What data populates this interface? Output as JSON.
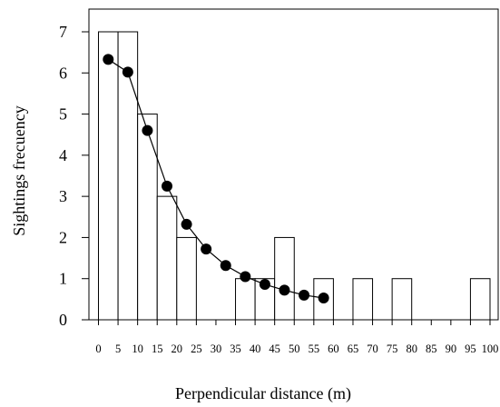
{
  "chart_data": {
    "type": "bar",
    "xlabel": "Perpendicular distance (m)",
    "ylabel": "Sightings frecuency",
    "xlim": [
      0,
      100
    ],
    "ylim": [
      0,
      7
    ],
    "bin_width": 5,
    "x_ticks": [
      0,
      5,
      10,
      15,
      20,
      25,
      30,
      35,
      40,
      45,
      50,
      55,
      60,
      65,
      70,
      75,
      80,
      85,
      90,
      95,
      100
    ],
    "y_ticks": [
      0,
      1,
      2,
      3,
      4,
      5,
      6,
      7
    ],
    "grid": false,
    "series": [
      {
        "type": "histogram",
        "bins": [
          {
            "start": 0,
            "end": 5,
            "count": 7
          },
          {
            "start": 5,
            "end": 10,
            "count": 7
          },
          {
            "start": 10,
            "end": 15,
            "count": 5
          },
          {
            "start": 15,
            "end": 20,
            "count": 3
          },
          {
            "start": 20,
            "end": 25,
            "count": 2
          },
          {
            "start": 25,
            "end": 30,
            "count": 0
          },
          {
            "start": 30,
            "end": 35,
            "count": 0
          },
          {
            "start": 35,
            "end": 40,
            "count": 1
          },
          {
            "start": 40,
            "end": 45,
            "count": 1
          },
          {
            "start": 45,
            "end": 50,
            "count": 2
          },
          {
            "start": 50,
            "end": 55,
            "count": 0
          },
          {
            "start": 55,
            "end": 60,
            "count": 1
          },
          {
            "start": 60,
            "end": 65,
            "count": 0
          },
          {
            "start": 65,
            "end": 70,
            "count": 1
          },
          {
            "start": 70,
            "end": 75,
            "count": 0
          },
          {
            "start": 75,
            "end": 80,
            "count": 1
          },
          {
            "start": 80,
            "end": 85,
            "count": 0
          },
          {
            "start": 85,
            "end": 90,
            "count": 0
          },
          {
            "start": 90,
            "end": 95,
            "count": 0
          },
          {
            "start": 95,
            "end": 100,
            "count": 1
          }
        ]
      },
      {
        "type": "line",
        "marker": "circle",
        "x": [
          2.5,
          7.5,
          12.5,
          17.5,
          22.5,
          27.5,
          32.5,
          37.5,
          42.5,
          47.5,
          52.5,
          57.5
        ],
        "y": [
          6.33,
          6.02,
          4.6,
          3.25,
          2.32,
          1.72,
          1.32,
          1.05,
          0.86,
          0.72,
          0.6,
          0.53
        ]
      }
    ]
  }
}
